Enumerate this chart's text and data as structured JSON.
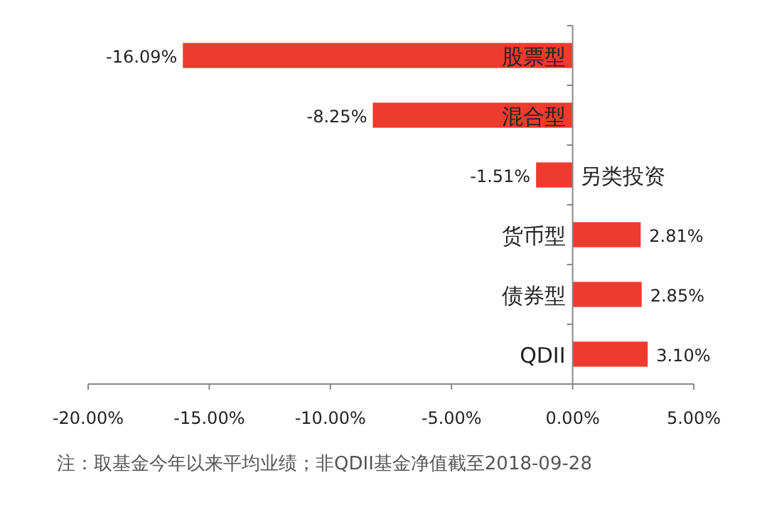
{
  "chart_data": {
    "type": "bar",
    "orientation": "horizontal",
    "categories": [
      "股票型",
      "混合型",
      "另类投资",
      "货币型",
      "债券型",
      "QDII"
    ],
    "values": [
      -16.09,
      -8.25,
      -1.51,
      2.81,
      2.85,
      3.1
    ],
    "value_labels": [
      "-16.09%",
      "-8.25%",
      "-1.51%",
      "2.81%",
      "2.85%",
      "3.10%"
    ],
    "color": "#ee3b2f",
    "xlim": [
      -20,
      5
    ],
    "xticks": [
      {
        "value": -20,
        "label": "-20.00%"
      },
      {
        "value": -15,
        "label": "-15.00%"
      },
      {
        "value": -10,
        "label": "-10.00%"
      },
      {
        "value": -5,
        "label": "-5.00%"
      },
      {
        "value": 0,
        "label": "0.00%"
      },
      {
        "value": 5,
        "label": "5.00%"
      }
    ],
    "grid": false,
    "annotations": [
      "注：取基金今年以来平均业绩；非QDII基金净值截至2018-09-28"
    ]
  }
}
